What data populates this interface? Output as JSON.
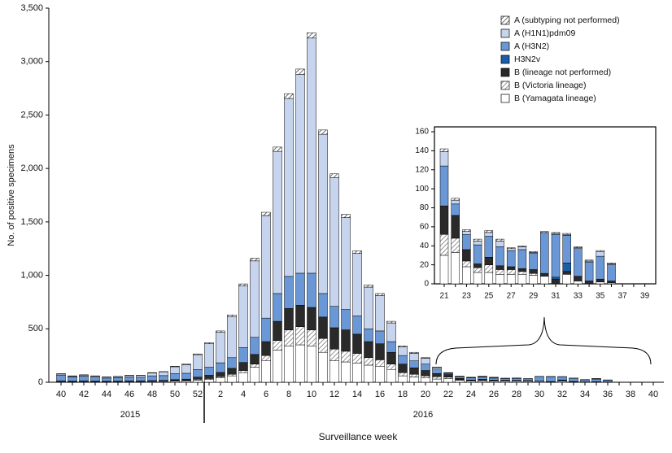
{
  "chart_data": [
    {
      "type": "bar",
      "stacked": true,
      "y_label": "No. of positive specimens",
      "x_label": "Surveillance week",
      "x_group_labels": [
        "2015",
        "2016"
      ],
      "categories": [
        "40",
        null,
        "42",
        null,
        "44",
        null,
        "46",
        null,
        "48",
        null,
        "50",
        null,
        "52",
        null,
        "2",
        null,
        "4",
        null,
        "6",
        null,
        "8",
        null,
        "10",
        null,
        "12",
        null,
        "14",
        null,
        "16",
        null,
        "18",
        null,
        "20",
        null,
        "22",
        null,
        "24",
        null,
        "26",
        null,
        "28",
        null,
        "30",
        null,
        "32",
        null,
        "34",
        null,
        "36",
        null,
        "38",
        null,
        "40"
      ],
      "ylim": [
        0,
        3500
      ],
      "yticks": [
        0,
        500,
        {
          "value": 1000,
          "label": "1,000"
        },
        {
          "value": 1500,
          "label": "1,500"
        },
        {
          "value": 2000,
          "label": "2,000"
        },
        {
          "value": 2500,
          "label": "2,500"
        },
        {
          "value": 3000,
          "label": "3,000"
        },
        {
          "value": 3500,
          "label": "3,500"
        }
      ],
      "legend": "upper right",
      "series": [
        {
          "name": "B (Yamagata lineage)",
          "color": "#ffffff",
          "values": [
            5,
            4,
            5,
            4,
            3,
            4,
            5,
            5,
            6,
            7,
            10,
            12,
            20,
            25,
            40,
            60,
            90,
            140,
            200,
            300,
            340,
            350,
            340,
            280,
            200,
            190,
            180,
            160,
            150,
            120,
            60,
            50,
            40,
            30,
            33,
            18,
            12,
            12,
            10,
            10,
            10,
            9,
            8,
            0,
            10,
            3,
            0,
            2,
            1,
            0,
            0,
            0,
            0
          ]
        },
        {
          "name": "B (Victoria lineage)",
          "color": "#777777",
          "pattern": "hatch",
          "values": [
            2,
            2,
            2,
            2,
            2,
            2,
            2,
            2,
            3,
            3,
            5,
            5,
            8,
            10,
            12,
            15,
            20,
            30,
            50,
            90,
            150,
            170,
            150,
            130,
            110,
            100,
            90,
            70,
            60,
            50,
            30,
            25,
            20,
            22,
            15,
            6,
            5,
            8,
            5,
            5,
            3,
            2,
            0,
            0,
            0,
            0,
            0,
            0,
            0,
            0,
            0,
            0,
            0
          ]
        },
        {
          "name": "B (lineage not performed)",
          "color": "#2a2a2a",
          "values": [
            5,
            4,
            5,
            4,
            4,
            4,
            5,
            5,
            6,
            7,
            10,
            12,
            20,
            30,
            40,
            55,
            75,
            90,
            130,
            180,
            200,
            200,
            210,
            200,
            200,
            200,
            180,
            150,
            150,
            110,
            80,
            60,
            50,
            30,
            24,
            12,
            4,
            8,
            4,
            3,
            3,
            4,
            3,
            5,
            3,
            5,
            3,
            3,
            2,
            0,
            0,
            0,
            0
          ]
        },
        {
          "name": "H3N2v",
          "color": "#1a5ea8",
          "values": [
            0,
            0,
            0,
            0,
            0,
            0,
            0,
            0,
            0,
            0,
            0,
            0,
            0,
            0,
            0,
            0,
            0,
            0,
            0,
            0,
            0,
            0,
            0,
            0,
            0,
            0,
            0,
            0,
            0,
            0,
            0,
            0,
            0,
            0,
            0,
            0,
            0,
            0,
            0,
            0,
            0,
            0,
            0,
            2,
            9,
            0,
            0,
            0,
            0,
            0,
            0,
            0,
            0
          ]
        },
        {
          "name": "A (H3N2)",
          "color": "#6a98d6",
          "values": [
            55,
            40,
            45,
            38,
            30,
            33,
            38,
            35,
            45,
            45,
            55,
            55,
            70,
            75,
            90,
            100,
            140,
            160,
            220,
            260,
            300,
            300,
            320,
            220,
            200,
            190,
            170,
            120,
            120,
            100,
            80,
            65,
            60,
            42,
            12,
            16,
            20,
            22,
            20,
            17,
            20,
            17,
            43,
            45,
            29,
            29,
            20,
            24,
            17,
            0,
            0,
            0,
            0
          ]
        },
        {
          "name": "A (H1N1)pdm09",
          "color": "#c6d4ee",
          "values": [
            10,
            8,
            10,
            10,
            9,
            10,
            13,
            16,
            27,
            35,
            65,
            80,
            140,
            220,
            285,
            385,
            575,
            715,
            960,
            1330,
            1665,
            1860,
            2200,
            1490,
            1205,
            860,
            585,
            390,
            330,
            175,
            80,
            70,
            55,
            15,
            4,
            3,
            4,
            4,
            6,
            2,
            3,
            1,
            0,
            1,
            1,
            1,
            1,
            5,
            1,
            0,
            0,
            0,
            0
          ]
        },
        {
          "name": "A (subtyping not performed)",
          "color": "#444444",
          "pattern": "hatch",
          "values": [
            3,
            2,
            3,
            2,
            2,
            2,
            2,
            2,
            3,
            3,
            5,
            6,
            7,
            10,
            13,
            15,
            20,
            25,
            30,
            40,
            45,
            50,
            50,
            40,
            35,
            30,
            25,
            20,
            20,
            15,
            10,
            10,
            5,
            3,
            2,
            2,
            2,
            2,
            2,
            1,
            1,
            1,
            1,
            1,
            1,
            1,
            1,
            1,
            1,
            0,
            0,
            0,
            0
          ]
        }
      ]
    },
    {
      "type": "bar",
      "stacked": true,
      "categories": [
        "21",
        null,
        "23",
        null,
        "25",
        null,
        "27",
        null,
        "29",
        null,
        "31",
        null,
        "33",
        null,
        "35",
        null,
        "37",
        null,
        "39"
      ],
      "ylim": [
        0,
        160
      ],
      "yticks": [
        0,
        20,
        40,
        60,
        80,
        100,
        120,
        140,
        160
      ],
      "series": [
        {
          "color": "#ffffff",
          "values": [
            30,
            33,
            18,
            12,
            12,
            10,
            10,
            10,
            9,
            8,
            0,
            10,
            3,
            0,
            2,
            1,
            0,
            0,
            0
          ]
        },
        {
          "color": "#777777",
          "pattern": "hatch",
          "values": [
            22,
            15,
            6,
            5,
            8,
            5,
            5,
            3,
            2,
            0,
            0,
            0,
            0,
            0,
            0,
            0,
            0,
            0,
            0
          ]
        },
        {
          "color": "#2a2a2a",
          "values": [
            30,
            24,
            12,
            4,
            8,
            4,
            3,
            3,
            4,
            3,
            5,
            3,
            5,
            3,
            3,
            2,
            0,
            0,
            0
          ]
        },
        {
          "color": "#1a5ea8",
          "values": [
            0,
            0,
            0,
            0,
            0,
            0,
            0,
            0,
            0,
            0,
            2,
            9,
            0,
            0,
            0,
            0,
            0,
            0,
            0
          ]
        },
        {
          "color": "#6a98d6",
          "values": [
            42,
            12,
            16,
            20,
            22,
            20,
            17,
            20,
            17,
            43,
            45,
            29,
            29,
            20,
            24,
            17,
            0,
            0,
            0
          ]
        },
        {
          "color": "#c6d4ee",
          "values": [
            15,
            4,
            3,
            4,
            4,
            6,
            2,
            3,
            1,
            0,
            1,
            1,
            1,
            1,
            5,
            1,
            0,
            0,
            0
          ]
        },
        {
          "color": "#444444",
          "pattern": "hatch",
          "values": [
            3,
            2,
            2,
            2,
            2,
            2,
            1,
            1,
            1,
            1,
            1,
            1,
            1,
            1,
            1,
            1,
            0,
            0,
            0
          ]
        }
      ]
    }
  ]
}
